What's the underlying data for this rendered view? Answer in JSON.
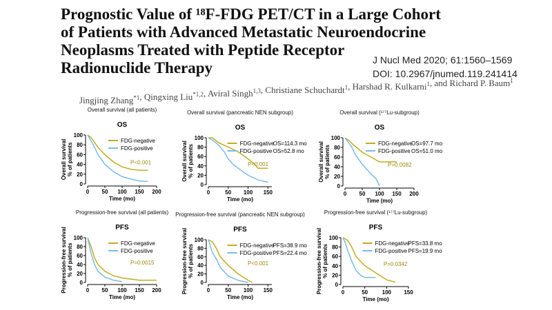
{
  "title_lines": [
    "Prognostic Value of ¹⁸F-FDG PET/CT in a Large Cohort",
    "of Patients with Advanced Metastatic Neuroendocrine",
    "Neoplasms Treated with Peptide Receptor",
    "Radionuclide Therapy"
  ],
  "citation": "J Nucl Med 2020; 61:1560–1569",
  "doi": "DOI: 10.2967/jnumed.119.241414",
  "authors": [
    {
      "name": "Jingjing Zhang",
      "affil": "*1"
    },
    {
      "name": ", Qingxing Liu",
      "affil": "*1,2"
    },
    {
      "name": ", Aviral Singh",
      "affil": "1,3"
    },
    {
      "name": ", Christiane Schuchardt",
      "affil": "1"
    },
    {
      "name": ", Harshad R. Kulkarni",
      "affil": "1"
    },
    {
      "name": ", and Richard P. Baum",
      "affil": "1"
    }
  ],
  "chart_data": [
    {
      "type": "line",
      "subtitle": "Overall survival (all patients)",
      "title": "OS",
      "ylabel": [
        "Overall survival",
        "% of patients"
      ],
      "xlabel": "Time (mo)",
      "xlim": [
        0,
        200
      ],
      "xticks": [
        0,
        50,
        100,
        150,
        200
      ],
      "ylim": [
        0,
        100
      ],
      "yticks": [
        0,
        20,
        40,
        60,
        80,
        100
      ],
      "annotation": "P<0.001",
      "series": [
        {
          "name": "FDG-negative",
          "color": "#c3ac1e",
          "x": [
            0,
            10,
            20,
            30,
            50,
            75,
            100,
            125,
            150,
            175
          ],
          "values": [
            100,
            95,
            85,
            75,
            60,
            45,
            35,
            30,
            28,
            28
          ]
        },
        {
          "name": "FDG-positive",
          "color": "#78bce6",
          "x": [
            0,
            10,
            20,
            30,
            50,
            75,
            100,
            125,
            150,
            175
          ],
          "values": [
            100,
            88,
            75,
            60,
            40,
            25,
            15,
            10,
            6,
            5
          ]
        }
      ]
    },
    {
      "type": "line",
      "subtitle": "Overall survival (pancreatic NEN subgroup)",
      "title": "OS",
      "ylabel": [
        "Overall survival",
        "% of patients"
      ],
      "xlabel": "Time (mo)",
      "xlim": [
        0,
        160
      ],
      "xticks": [
        0,
        50,
        100,
        150
      ],
      "ylim": [
        0,
        100
      ],
      "yticks": [
        0,
        20,
        40,
        60,
        80,
        100
      ],
      "annotation": "P<0.001",
      "series": [
        {
          "name": "FDG-negative",
          "annotation": "OS=114.3 mo",
          "color": "#c3ac1e",
          "x": [
            0,
            10,
            25,
            50,
            75,
            100,
            115,
            125,
            150
          ],
          "values": [
            100,
            100,
            90,
            80,
            70,
            55,
            45,
            35,
            35
          ]
        },
        {
          "name": "FDG-positive",
          "annotation": "OS=52.8 mo",
          "color": "#78bce6",
          "x": [
            0,
            10,
            25,
            40,
            50,
            60,
            75,
            100,
            125,
            150
          ],
          "values": [
            100,
            95,
            85,
            70,
            55,
            45,
            35,
            20,
            10,
            5
          ]
        }
      ]
    },
    {
      "type": "line",
      "subtitle": "Overall survival (¹⁷⁷Lu-subgroup)",
      "title": "OS",
      "ylabel": [
        "Overall survival",
        "% of patients"
      ],
      "xlabel": "Time (mo)",
      "xlim": [
        0,
        200
      ],
      "xticks": [
        0,
        50,
        100,
        150,
        200
      ],
      "ylim": [
        0,
        100
      ],
      "yticks": [
        0,
        20,
        40,
        60,
        80,
        100
      ],
      "annotation": "P=0.0082",
      "series": [
        {
          "name": "FDG-negative",
          "annotation": "OS=97.7 mo",
          "color": "#c3ac1e",
          "x": [
            0,
            10,
            25,
            50,
            75,
            100,
            125,
            150
          ],
          "values": [
            100,
            95,
            85,
            70,
            60,
            50,
            50,
            50
          ]
        },
        {
          "name": "FDG-positive",
          "annotation": "OS=51.0 mo",
          "color": "#78bce6",
          "x": [
            0,
            10,
            20,
            30,
            50,
            75,
            90,
            100
          ],
          "values": [
            100,
            90,
            80,
            65,
            45,
            25,
            15,
            0
          ]
        }
      ]
    },
    {
      "type": "line",
      "subtitle": "Progression-free survival (all patients)",
      "title": "PFS",
      "ylabel": [
        "Progression-free survival",
        "% of patients"
      ],
      "xlabel": "Time (mo)",
      "xlim": [
        0,
        200
      ],
      "xticks": [
        0,
        50,
        100,
        150,
        200
      ],
      "ylim": [
        0,
        100
      ],
      "yticks": [
        0,
        20,
        40,
        60,
        80,
        100
      ],
      "annotation": "P=0.0015",
      "series": [
        {
          "name": "FDG-negative",
          "color": "#c3ac1e",
          "x": [
            0,
            10,
            20,
            30,
            50,
            75,
            100,
            150,
            200
          ],
          "values": [
            100,
            80,
            55,
            40,
            25,
            15,
            10,
            5,
            5
          ]
        },
        {
          "name": "FDG-positive",
          "color": "#78bce6",
          "x": [
            0,
            10,
            20,
            30,
            50,
            75,
            100
          ],
          "values": [
            100,
            65,
            40,
            25,
            12,
            5,
            2
          ]
        }
      ]
    },
    {
      "type": "line",
      "subtitle": "Progression-free survival (pancreatic NEN subgroup)",
      "title": "PFS",
      "ylabel": [
        "Progression-free survival",
        "% of patients"
      ],
      "xlabel": "Time (mo)",
      "xlim": [
        0,
        160
      ],
      "xticks": [
        0,
        50,
        100,
        150
      ],
      "ylim": [
        0,
        100
      ],
      "yticks": [
        0,
        20,
        40,
        60,
        80,
        100
      ],
      "annotation": "P<0.001",
      "series": [
        {
          "name": "FDG-negative",
          "annotation": "PFS=38.9 mo",
          "color": "#c3ac1e",
          "x": [
            0,
            10,
            20,
            30,
            40,
            50,
            75,
            100,
            110
          ],
          "values": [
            100,
            95,
            80,
            60,
            50,
            40,
            20,
            5,
            0
          ]
        },
        {
          "name": "FDG-positive",
          "annotation": "PFS=22.4 mo",
          "color": "#78bce6",
          "x": [
            0,
            5,
            10,
            20,
            30,
            50,
            75,
            100
          ],
          "values": [
            100,
            85,
            70,
            55,
            35,
            15,
            5,
            0
          ]
        }
      ]
    },
    {
      "type": "line",
      "subtitle": "Progression-free survival (¹⁷⁷Lu-subgroup)",
      "title": "PFS",
      "ylabel": [
        "Progression-free survival",
        "% of patients"
      ],
      "xlabel": "Time (mo)",
      "xlim": [
        0,
        150
      ],
      "xticks": [
        0,
        50,
        100,
        150
      ],
      "ylim": [
        0,
        100
      ],
      "yticks": [
        0,
        20,
        40,
        60,
        80,
        100
      ],
      "annotation": "P=0.0342",
      "series": [
        {
          "name": "FDG-negative",
          "annotation": "PFS=33.8 mo",
          "color": "#c3ac1e",
          "x": [
            0,
            10,
            20,
            30,
            40,
            50,
            75,
            100,
            120
          ],
          "values": [
            100,
            95,
            80,
            60,
            50,
            40,
            25,
            10,
            5
          ]
        },
        {
          "name": "FDG-positive",
          "annotation": "PFS=19.9 mo",
          "color": "#78bce6",
          "x": [
            0,
            5,
            10,
            20,
            30,
            40,
            50,
            75
          ],
          "values": [
            100,
            90,
            75,
            50,
            30,
            20,
            15,
            15
          ]
        }
      ]
    }
  ]
}
